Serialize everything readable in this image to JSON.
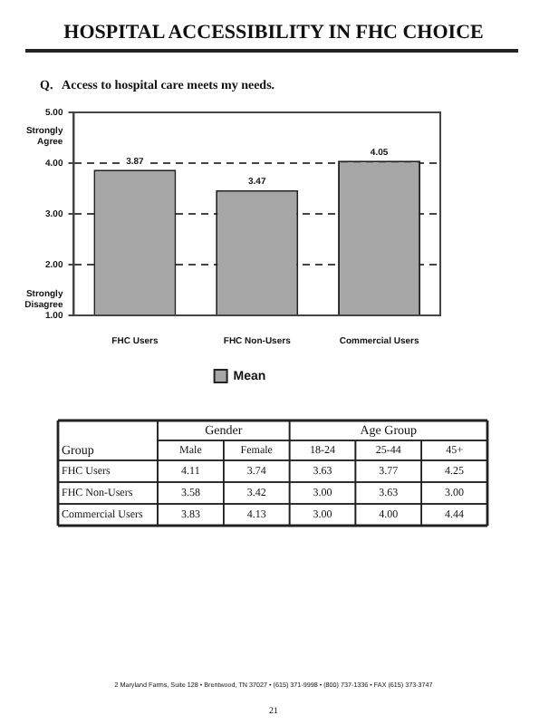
{
  "chart_data": [
    {
      "type": "bar",
      "title": "HOSPITAL ACCESSIBILITY IN FHC CHOICE",
      "subtitle": "Q.   Access to hospital care meets my needs.",
      "categories": [
        "FHC Users",
        "FHC Non-Users",
        "Commercial Users"
      ],
      "series": [
        {
          "name": "Mean",
          "color": "#a6a6a6",
          "values": [
            3.87,
            3.47,
            4.05
          ]
        }
      ],
      "ylim": [
        1,
        5
      ],
      "yticks": [
        {
          "value": 1,
          "label": "1.00"
        },
        {
          "value": 2,
          "label": "2.00"
        },
        {
          "value": 3,
          "label": "3.00"
        },
        {
          "value": 4,
          "label": "4.00"
        },
        {
          "value": 5,
          "label": "5.00"
        }
      ],
      "grid": "y",
      "legend": "bottom",
      "data_labels": true,
      "annotations": [
        "Strongly Agree",
        "Strongly Disagree"
      ]
    },
    {
      "type": "heatmap",
      "ylabel": "Group",
      "data_labels": true,
      "categories": [
        "Male",
        "Female",
        "18-24",
        "25-44",
        "45+"
      ],
      "y_categories": [
        "FHC Users",
        "FHC Non-Users",
        "Commercial Users"
      ],
      "cells": [
        [
          4.11,
          3.74,
          3.63,
          3.77,
          4.25
        ],
        [
          3.58,
          3.42,
          3.0,
          3.63,
          3.0
        ],
        [
          3.83,
          4.13,
          3.0,
          4.0,
          4.44
        ]
      ],
      "cell_labels": [
        [
          "4.11",
          "3.74",
          "3.63",
          "3.77",
          "4.25"
        ],
        [
          "3.58",
          "3.42",
          "3.00",
          "3.63",
          "3.00"
        ],
        [
          "3.83",
          "4.13",
          "3.00",
          "4.00",
          "4.44"
        ]
      ],
      "annotations": [
        "Gender",
        "Age Group",
        "2 Maryland Farms, Suite 128 • Brentwood, TN 37027 • (615) 371-9998 • (800) 737-1336 • FAX (615) 373-3747",
        "21"
      ]
    }
  ]
}
